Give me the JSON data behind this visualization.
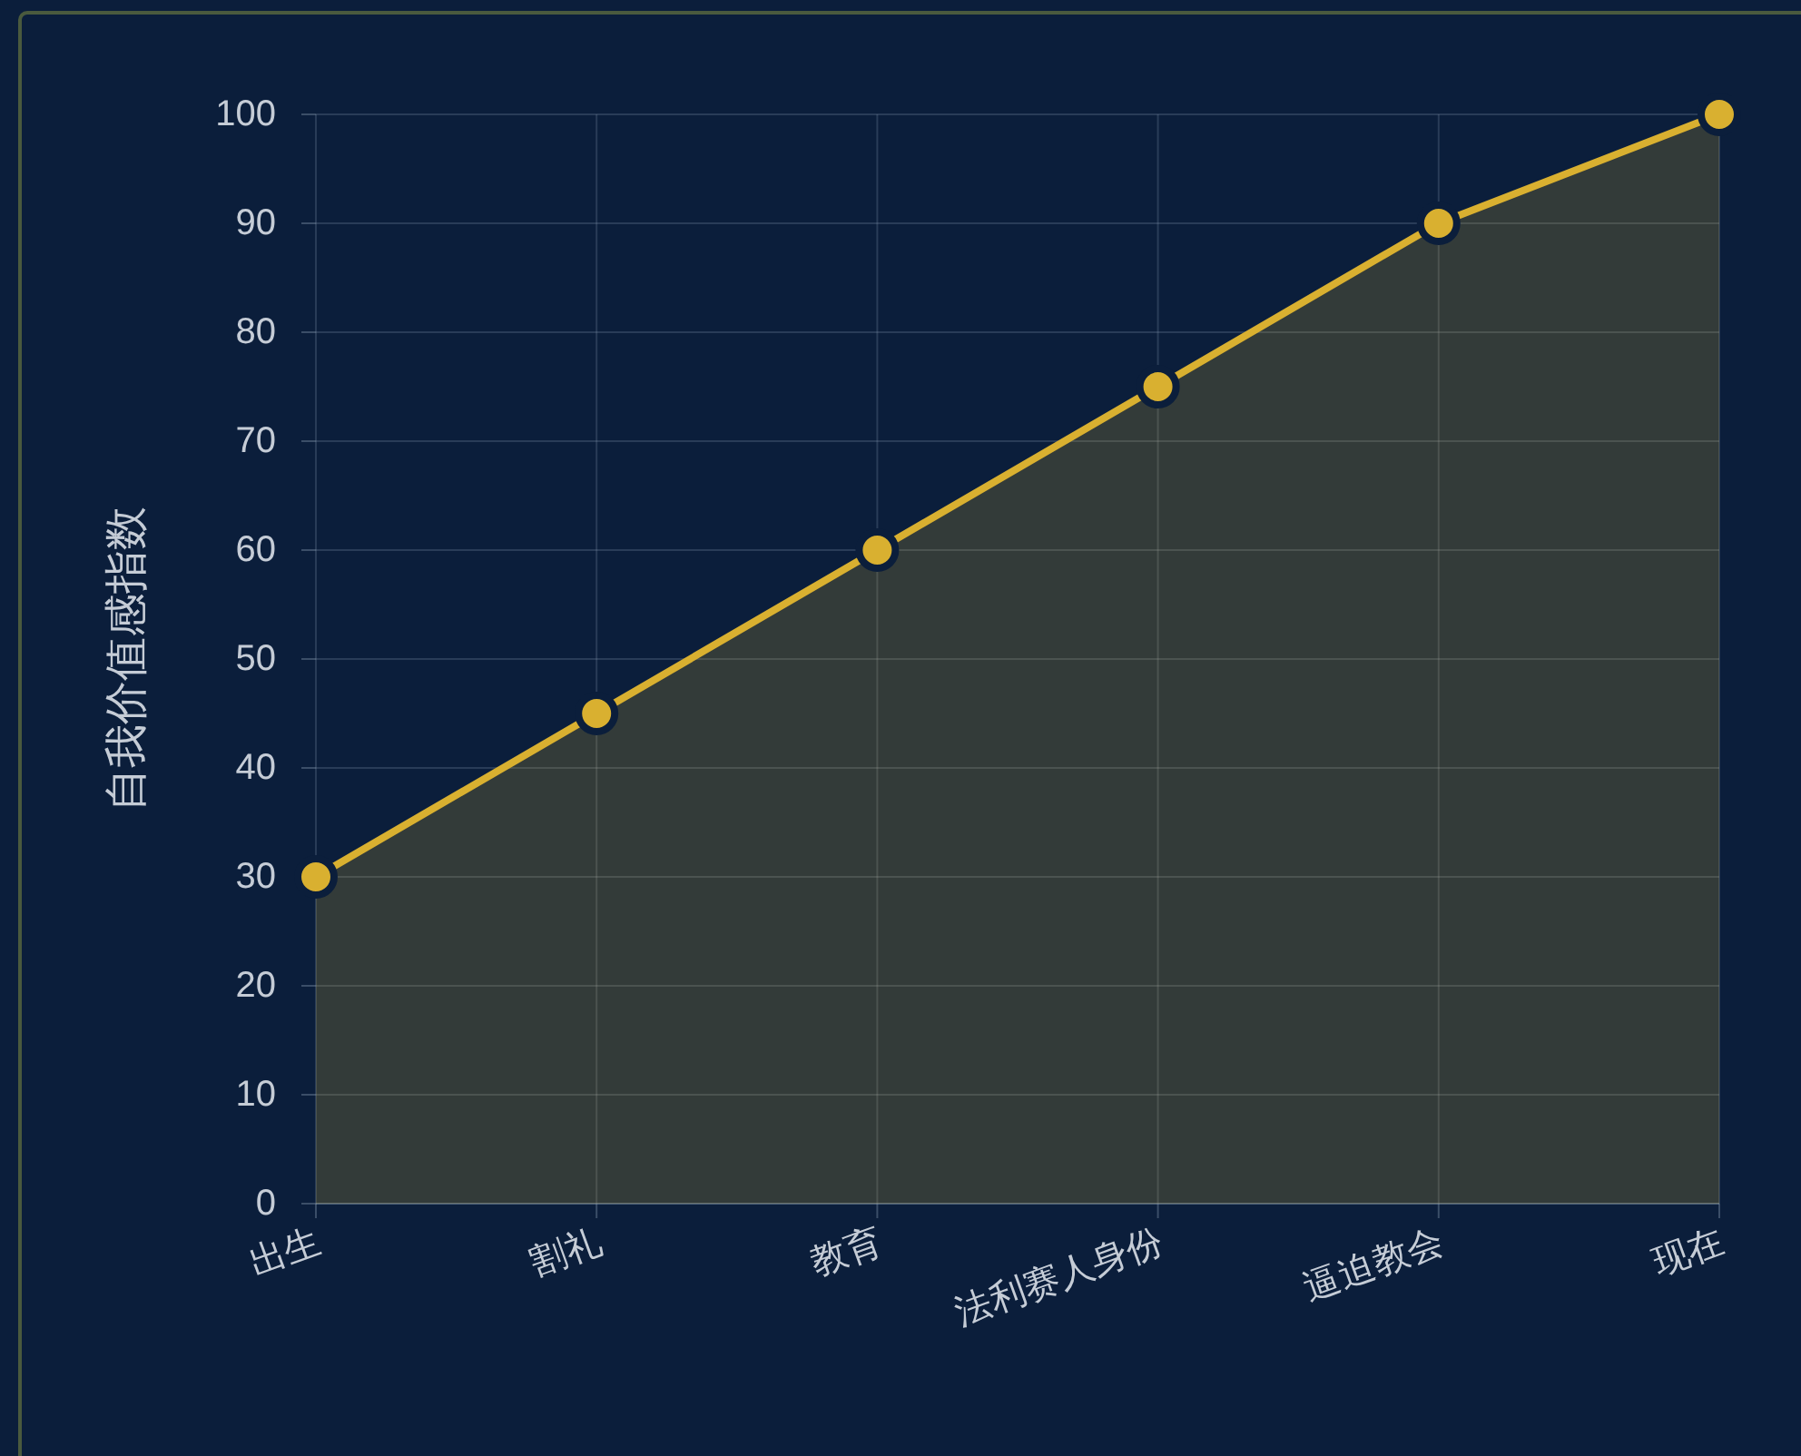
{
  "chart_data": {
    "type": "area",
    "ylabel": "自我价值感指数",
    "categories": [
      "出生",
      "割礼",
      "教育",
      "法利赛人身份",
      "逼迫教会",
      "现在"
    ],
    "series": [
      {
        "color": "#d9b030",
        "values": [
          30,
          45,
          60,
          75,
          90,
          100
        ]
      }
    ],
    "ylim": [
      0,
      100
    ],
    "yticks": [
      0,
      10,
      20,
      30,
      40,
      50,
      60,
      70,
      80,
      90,
      100
    ],
    "grid": true,
    "marker": "circle"
  }
}
